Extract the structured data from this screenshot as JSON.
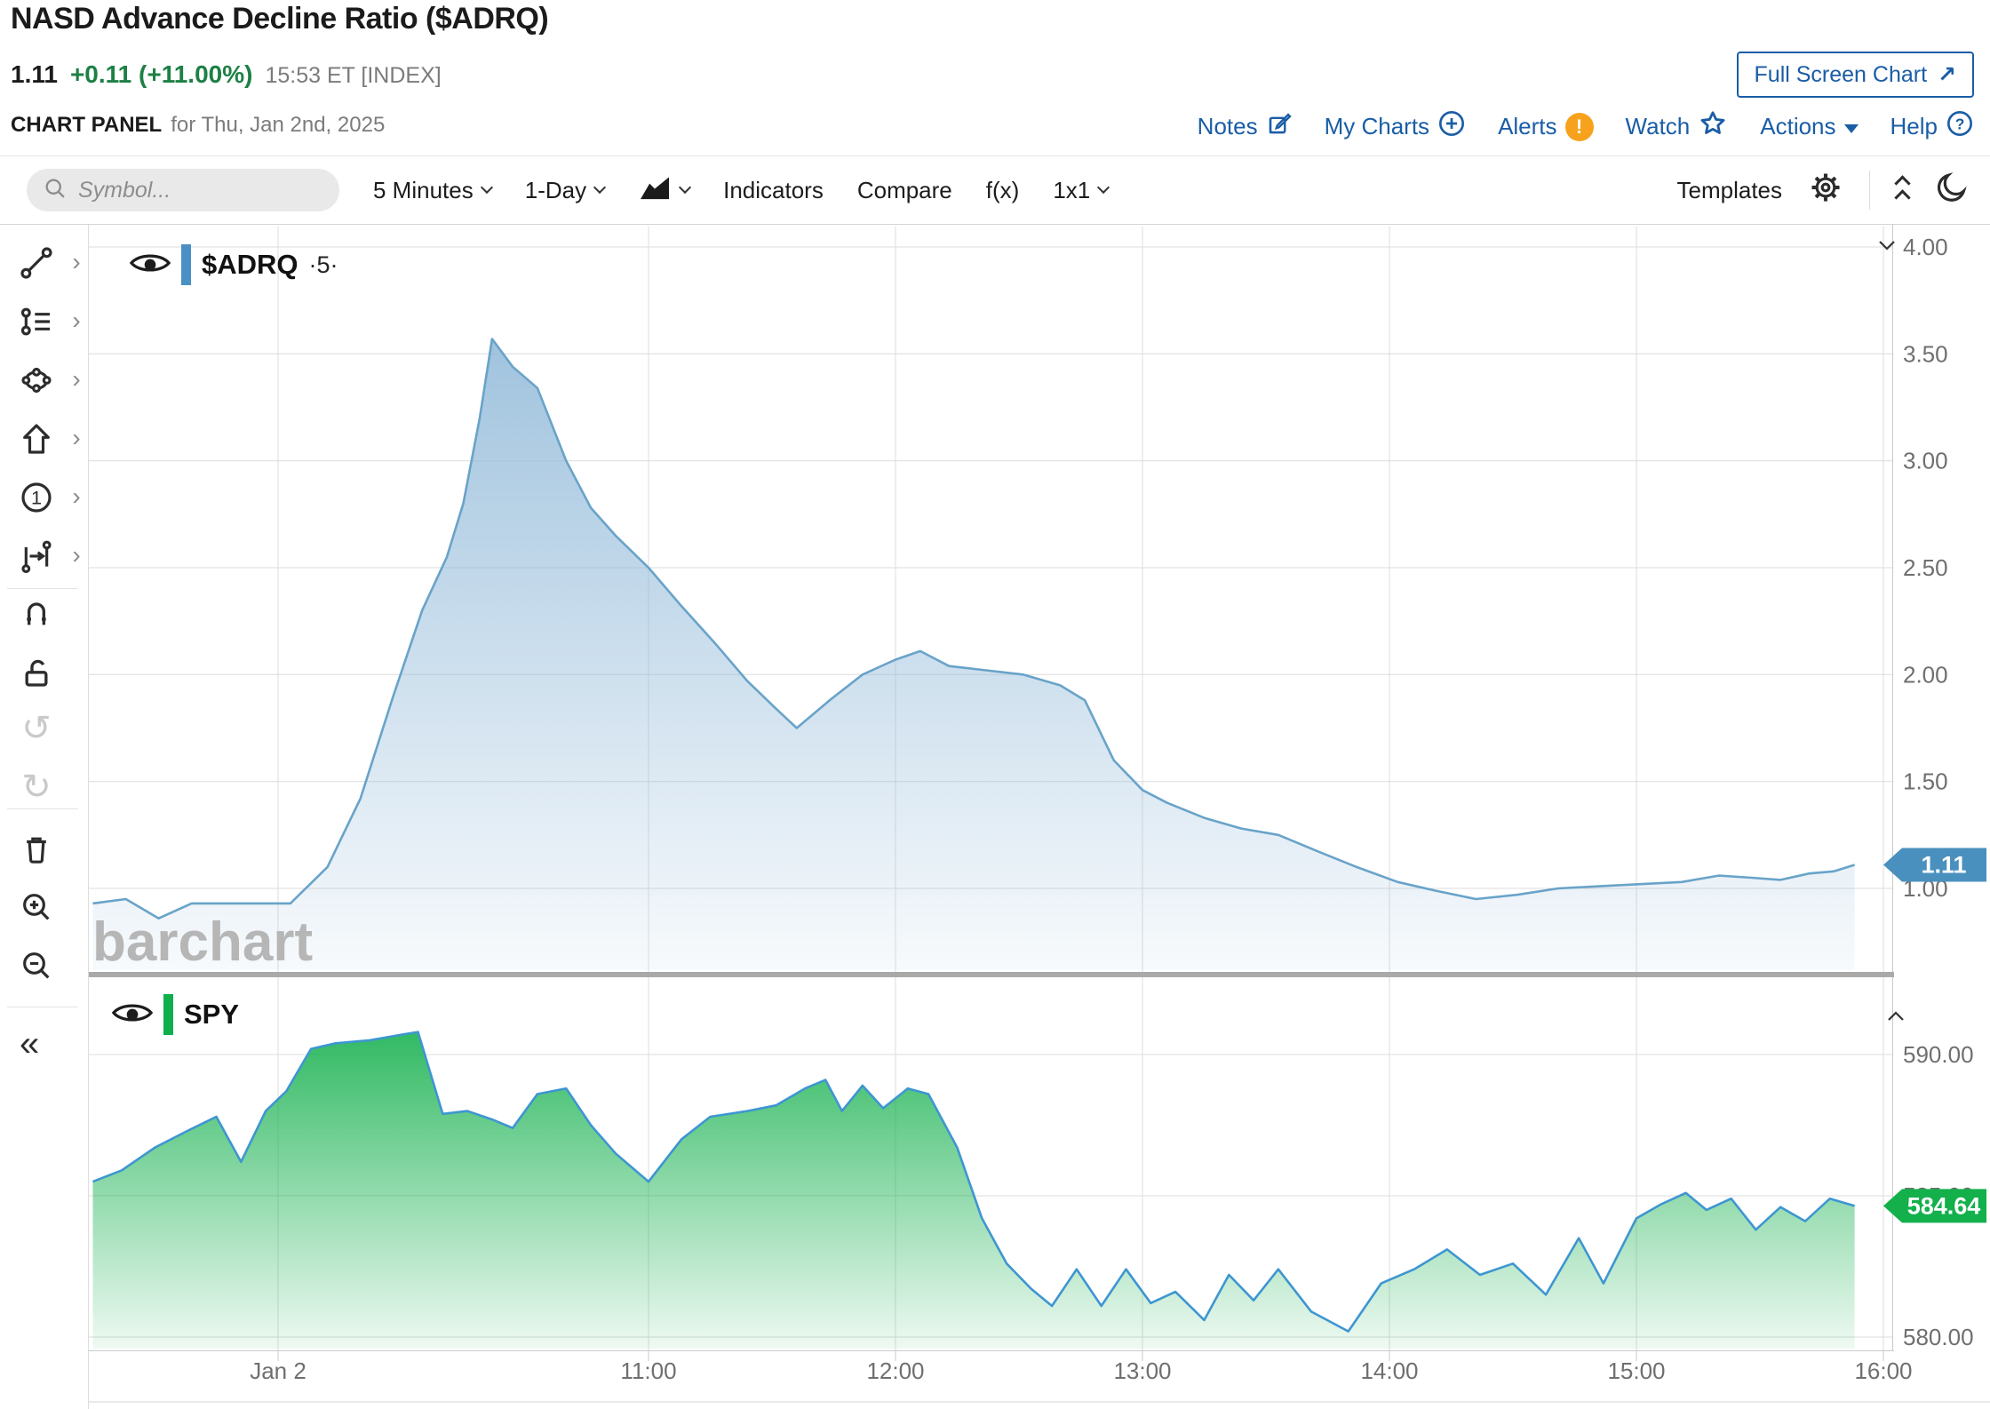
{
  "header": {
    "title": "NASD Advance Decline Ratio ($ADRQ)",
    "last_price": "1.11",
    "change": "+0.11 (+11.00%)",
    "quote_time": "15:53 ET [INDEX]",
    "full_screen_button": "Full Screen Chart",
    "panel_label": "CHART PANEL",
    "panel_date": "for Thu, Jan 2nd, 2025",
    "nav_links": {
      "notes": "Notes",
      "my_charts": "My Charts",
      "alerts": "Alerts",
      "watch": "Watch",
      "actions": "Actions",
      "help": "Help"
    }
  },
  "toolbar": {
    "symbol_placeholder": "Symbol...",
    "frequency": "5 Minutes",
    "range": "1-Day",
    "indicators": "Indicators",
    "compare": "Compare",
    "fx": "f(x)",
    "layout": "1x1",
    "templates": "Templates"
  },
  "icons": {
    "submenu_chevron": "›",
    "collapse_sidebar": "«",
    "undo": "↺",
    "redo": "↻",
    "fullscreen_arrow": "↗",
    "alert_badge": "!",
    "help_glyph": "?"
  },
  "sidebar_tools": [
    "trend-line-tool",
    "fibonacci-tool",
    "shapes-tool",
    "arrow-tool",
    "numbered-annotation-tool",
    "measure-tool",
    "magnet-tool",
    "unlock-tool",
    "undo-button",
    "redo-button",
    "delete-drawings-button",
    "zoom-in-button",
    "zoom-out-button",
    "collapse-sidebar-button"
  ],
  "watermark": "barchart",
  "colors": {
    "accent_blue": "#1a5da6",
    "positive_green": "#1d8045",
    "alert_orange": "#f6a21d",
    "grid": "#dcdcdc",
    "axis_text": "#6f6f6f",
    "splitter": "#a9a9a9",
    "watermark": "#b6b6b6"
  },
  "chart_data": {
    "type": "area",
    "x_ticks": [
      {
        "label": "Jan 2",
        "time": "09:30"
      },
      {
        "label": "11:00",
        "time": "11:00"
      },
      {
        "label": "12:00",
        "time": "12:00"
      },
      {
        "label": "13:00",
        "time": "13:00"
      },
      {
        "label": "14:00",
        "time": "14:00"
      },
      {
        "label": "15:00",
        "time": "15:00"
      },
      {
        "label": "16:00",
        "time": "16:00"
      }
    ],
    "session": {
      "start": "08:45",
      "end": "16:00"
    },
    "panes": [
      {
        "label": "$ADRQ",
        "badge": "·5·",
        "line_color": "#69a3c9",
        "fill_color": "#8fb8d8",
        "legend_bar_color": "#4a90c4",
        "tag": {
          "text": "1.11",
          "color": "#4a90be"
        },
        "y_ticks": [
          {
            "label": "4.00",
            "v": 4.0
          },
          {
            "label": "3.50",
            "v": 3.5
          },
          {
            "label": "3.00",
            "v": 3.0
          },
          {
            "label": "2.50",
            "v": 2.5
          },
          {
            "label": "2.00",
            "v": 2.0
          },
          {
            "label": "1.50",
            "v": 1.5
          },
          {
            "label": "1.00",
            "v": 1.0
          }
        ],
        "points": [
          [
            "08:45",
            0.93
          ],
          [
            "08:53",
            0.95
          ],
          [
            "09:01",
            0.86
          ],
          [
            "09:09",
            0.93
          ],
          [
            "09:20",
            0.93
          ],
          [
            "09:33",
            0.93
          ],
          [
            "09:42",
            1.1
          ],
          [
            "09:50",
            1.42
          ],
          [
            "09:58",
            1.9
          ],
          [
            "10:05",
            2.3
          ],
          [
            "10:11",
            2.55
          ],
          [
            "10:15",
            2.8
          ],
          [
            "10:19",
            3.2
          ],
          [
            "10:22",
            3.57
          ],
          [
            "10:27",
            3.44
          ],
          [
            "10:33",
            3.34
          ],
          [
            "10:40",
            3.0
          ],
          [
            "10:46",
            2.78
          ],
          [
            "10:52",
            2.65
          ],
          [
            "11:00",
            2.5
          ],
          [
            "11:08",
            2.32
          ],
          [
            "11:16",
            2.15
          ],
          [
            "11:24",
            1.97
          ],
          [
            "11:31",
            1.84
          ],
          [
            "11:36",
            1.75
          ],
          [
            "11:44",
            1.88
          ],
          [
            "11:52",
            2.0
          ],
          [
            "12:00",
            2.07
          ],
          [
            "12:06",
            2.11
          ],
          [
            "12:13",
            2.04
          ],
          [
            "12:22",
            2.02
          ],
          [
            "12:31",
            2.0
          ],
          [
            "12:40",
            1.95
          ],
          [
            "12:46",
            1.88
          ],
          [
            "12:53",
            1.6
          ],
          [
            "13:00",
            1.46
          ],
          [
            "13:06",
            1.4
          ],
          [
            "13:15",
            1.33
          ],
          [
            "13:24",
            1.28
          ],
          [
            "13:33",
            1.25
          ],
          [
            "13:43",
            1.17
          ],
          [
            "13:52",
            1.1
          ],
          [
            "14:02",
            1.03
          ],
          [
            "14:11",
            0.99
          ],
          [
            "14:21",
            0.95
          ],
          [
            "14:31",
            0.97
          ],
          [
            "14:41",
            1.0
          ],
          [
            "14:51",
            1.01
          ],
          [
            "15:01",
            1.02
          ],
          [
            "15:11",
            1.03
          ],
          [
            "15:20",
            1.06
          ],
          [
            "15:28",
            1.05
          ],
          [
            "15:35",
            1.04
          ],
          [
            "15:42",
            1.07
          ],
          [
            "15:48",
            1.08
          ],
          [
            "15:53",
            1.11
          ]
        ]
      },
      {
        "label": "SPY",
        "badge": "",
        "line_color": "#3e96d1",
        "fill_color": "#14b04d",
        "legend_bar_color": "#0faf4c",
        "tag": {
          "text": "584.64",
          "color": "#13b04c"
        },
        "y_ticks": [
          {
            "label": "590.00",
            "v": 590
          },
          {
            "label": "585.00",
            "v": 585
          },
          {
            "label": "580.00",
            "v": 580
          }
        ],
        "points": [
          [
            "08:45",
            585.5
          ],
          [
            "08:52",
            585.9
          ],
          [
            "09:00",
            586.7
          ],
          [
            "09:08",
            587.3
          ],
          [
            "09:15",
            587.8
          ],
          [
            "09:21",
            586.2
          ],
          [
            "09:27",
            588.0
          ],
          [
            "09:32",
            588.7
          ],
          [
            "09:38",
            590.2
          ],
          [
            "09:44",
            590.4
          ],
          [
            "09:52",
            590.5
          ],
          [
            "10:00",
            590.7
          ],
          [
            "10:04",
            590.8
          ],
          [
            "10:10",
            587.9
          ],
          [
            "10:16",
            588.0
          ],
          [
            "10:22",
            587.7
          ],
          [
            "10:27",
            587.4
          ],
          [
            "10:33",
            588.6
          ],
          [
            "10:40",
            588.8
          ],
          [
            "10:46",
            587.5
          ],
          [
            "10:52",
            586.5
          ],
          [
            "11:00",
            585.5
          ],
          [
            "11:08",
            587.0
          ],
          [
            "11:15",
            587.8
          ],
          [
            "11:24",
            588.0
          ],
          [
            "11:31",
            588.2
          ],
          [
            "11:38",
            588.8
          ],
          [
            "11:43",
            589.1
          ],
          [
            "11:47",
            588.0
          ],
          [
            "11:52",
            588.9
          ],
          [
            "11:57",
            588.1
          ],
          [
            "12:03",
            588.8
          ],
          [
            "12:08",
            588.6
          ],
          [
            "12:15",
            586.7
          ],
          [
            "12:21",
            584.2
          ],
          [
            "12:27",
            582.6
          ],
          [
            "12:33",
            581.7
          ],
          [
            "12:38",
            581.1
          ],
          [
            "12:44",
            582.4
          ],
          [
            "12:50",
            581.1
          ],
          [
            "12:56",
            582.4
          ],
          [
            "13:02",
            581.2
          ],
          [
            "13:08",
            581.6
          ],
          [
            "13:15",
            580.6
          ],
          [
            "13:21",
            582.2
          ],
          [
            "13:27",
            581.3
          ],
          [
            "13:33",
            582.4
          ],
          [
            "13:41",
            580.9
          ],
          [
            "13:50",
            580.2
          ],
          [
            "13:58",
            581.9
          ],
          [
            "14:06",
            582.4
          ],
          [
            "14:14",
            583.1
          ],
          [
            "14:22",
            582.2
          ],
          [
            "14:30",
            582.6
          ],
          [
            "14:38",
            581.5
          ],
          [
            "14:46",
            583.5
          ],
          [
            "14:52",
            581.9
          ],
          [
            "15:00",
            584.2
          ],
          [
            "15:06",
            584.7
          ],
          [
            "15:12",
            585.1
          ],
          [
            "15:17",
            584.5
          ],
          [
            "15:23",
            584.9
          ],
          [
            "15:29",
            583.8
          ],
          [
            "15:35",
            584.6
          ],
          [
            "15:41",
            584.1
          ],
          [
            "15:47",
            584.9
          ],
          [
            "15:53",
            584.64
          ]
        ]
      }
    ]
  }
}
